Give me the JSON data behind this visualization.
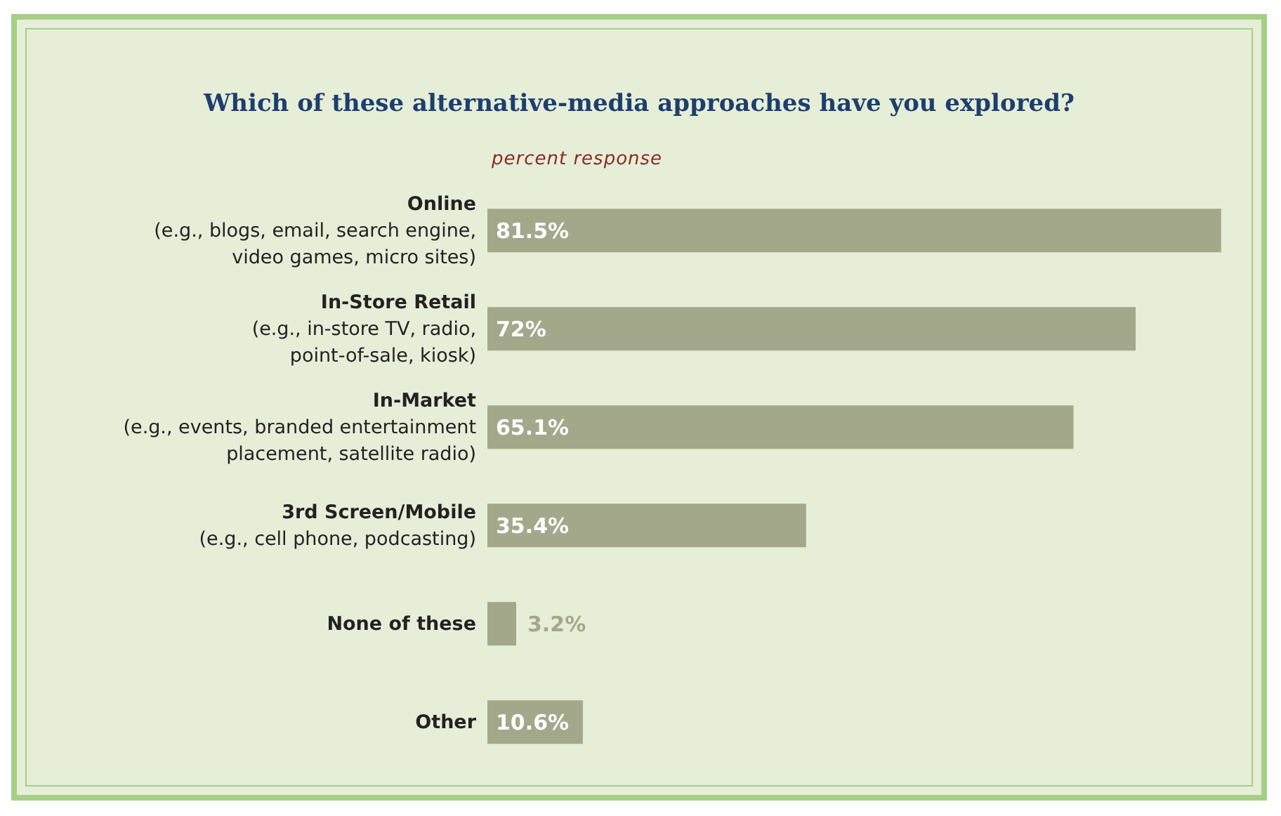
{
  "chart_data": {
    "type": "bar",
    "orientation": "horizontal",
    "title": "Which of these alternative-media approaches have you explored?",
    "xlabel": "percent response",
    "categories": [
      "Online\n(e.g., blogs, email, search engine,\nvideo games, micro sites)",
      "In-Store Retail\n(e.g., in-store TV, radio,\npoint-of-sale, kiosk)",
      "In-Market\n(e.g., events, branded entertainment\nplacement, satellite radio)",
      "3rd Screen/Mobile\n(e.g., cell phone, podcasting)",
      "None of these",
      "Other"
    ],
    "values": [
      81.5,
      72,
      65.1,
      35.4,
      3.2,
      10.6
    ],
    "value_labels": [
      "81.5%",
      "72%",
      "65.1%",
      "35.4%",
      "3.2%",
      "10.6%"
    ],
    "color": "#a3a88b"
  }
}
